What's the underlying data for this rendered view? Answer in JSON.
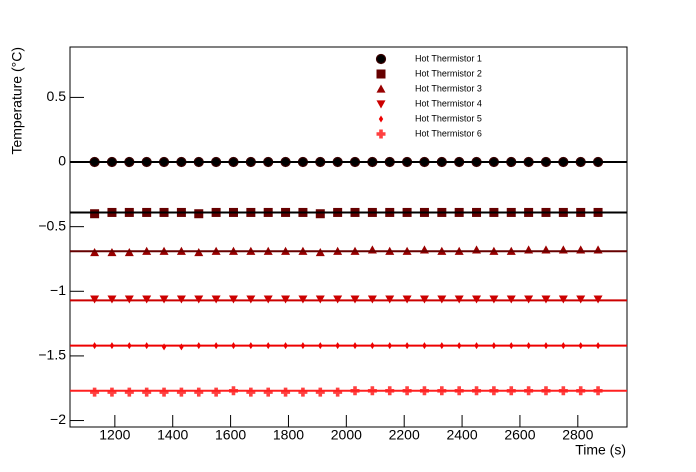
{
  "chart_data": {
    "type": "scatter",
    "x_label": "Time (s)",
    "y_label": "Temperature (°C)",
    "xlim": [
      1045,
      2970
    ],
    "ylim": [
      -2.05,
      0.89
    ],
    "xticks": [
      1200,
      1400,
      1600,
      1800,
      2000,
      2200,
      2400,
      2600,
      2800
    ],
    "yticks": [
      0.5,
      0,
      {
        "value": -0.5,
        "label": "−0.5"
      },
      {
        "value": -1,
        "label": "−1"
      },
      {
        "value": -1.5,
        "label": "−1.5"
      },
      {
        "value": -2,
        "label": "−2"
      }
    ],
    "x": [
      1130,
      1190,
      1250,
      1310,
      1370,
      1430,
      1490,
      1550,
      1610,
      1670,
      1730,
      1790,
      1850,
      1910,
      1970,
      2030,
      2090,
      2150,
      2210,
      2270,
      2330,
      2390,
      2450,
      2510,
      2570,
      2630,
      2690,
      2750,
      2810,
      2870
    ],
    "series": [
      {
        "name": "Hot Thermistor 1",
        "color": "#000000",
        "marker": "circle",
        "fit": 0,
        "fit_color": "#000000",
        "values": [
          0,
          0,
          0,
          0,
          0,
          0,
          0,
          0,
          0,
          0,
          0,
          0,
          0,
          0,
          0,
          0,
          0,
          0,
          0,
          0,
          0,
          0,
          0,
          0,
          0,
          0,
          0,
          0,
          0,
          0
        ]
      },
      {
        "name": "Hot Thermistor 2",
        "color": "#660000",
        "marker": "square",
        "fit": -0.39,
        "fit_color": "#000000",
        "values": [
          -0.4,
          -0.39,
          -0.39,
          -0.39,
          -0.39,
          -0.39,
          -0.4,
          -0.39,
          -0.39,
          -0.39,
          -0.39,
          -0.39,
          -0.39,
          -0.4,
          -0.39,
          -0.39,
          -0.39,
          -0.39,
          -0.39,
          -0.39,
          -0.39,
          -0.39,
          -0.39,
          -0.39,
          -0.39,
          -0.39,
          -0.39,
          -0.39,
          -0.39,
          -0.39
        ]
      },
      {
        "name": "Hot Thermistor 3",
        "color": "#990000",
        "marker": "triangle-up",
        "fit": -0.69,
        "fit_color": "#660000",
        "values": [
          -0.7,
          -0.7,
          -0.7,
          -0.69,
          -0.69,
          -0.69,
          -0.7,
          -0.69,
          -0.69,
          -0.69,
          -0.69,
          -0.69,
          -0.69,
          -0.7,
          -0.69,
          -0.69,
          -0.68,
          -0.69,
          -0.69,
          -0.68,
          -0.69,
          -0.69,
          -0.68,
          -0.69,
          -0.69,
          -0.68,
          -0.68,
          -0.68,
          -0.68,
          -0.68
        ]
      },
      {
        "name": "Hot Thermistor 4",
        "color": "#cc0000",
        "marker": "triangle-down",
        "fit": -1.07,
        "fit_color": "#cc0000",
        "values": [
          -1.06,
          -1.06,
          -1.06,
          -1.06,
          -1.06,
          -1.06,
          -1.06,
          -1.06,
          -1.06,
          -1.06,
          -1.06,
          -1.06,
          -1.06,
          -1.06,
          -1.06,
          -1.06,
          -1.06,
          -1.06,
          -1.06,
          -1.06,
          -1.06,
          -1.06,
          -1.06,
          -1.06,
          -1.06,
          -1.06,
          -1.06,
          -1.06,
          -1.06,
          -1.06
        ]
      },
      {
        "name": "Hot Thermistor 5",
        "color": "#ee0000",
        "marker": "diamond",
        "fit": -1.42,
        "fit_color": "#ee0000",
        "values": [
          -1.42,
          -1.42,
          -1.42,
          -1.42,
          -1.43,
          -1.43,
          -1.42,
          -1.42,
          -1.42,
          -1.42,
          -1.42,
          -1.42,
          -1.42,
          -1.42,
          -1.42,
          -1.42,
          -1.42,
          -1.42,
          -1.42,
          -1.42,
          -1.42,
          -1.42,
          -1.42,
          -1.42,
          -1.42,
          -1.42,
          -1.42,
          -1.42,
          -1.42,
          -1.42
        ]
      },
      {
        "name": "Hot Thermistor 6",
        "color": "#ff4040",
        "marker": "plus",
        "fit": -1.77,
        "fit_color": "#ff2020",
        "values": [
          -1.78,
          -1.78,
          -1.78,
          -1.78,
          -1.78,
          -1.78,
          -1.78,
          -1.78,
          -1.77,
          -1.78,
          -1.78,
          -1.78,
          -1.78,
          -1.78,
          -1.78,
          -1.77,
          -1.77,
          -1.77,
          -1.77,
          -1.77,
          -1.77,
          -1.77,
          -1.77,
          -1.77,
          -1.77,
          -1.77,
          -1.77,
          -1.77,
          -1.77,
          -1.77
        ]
      }
    ]
  }
}
